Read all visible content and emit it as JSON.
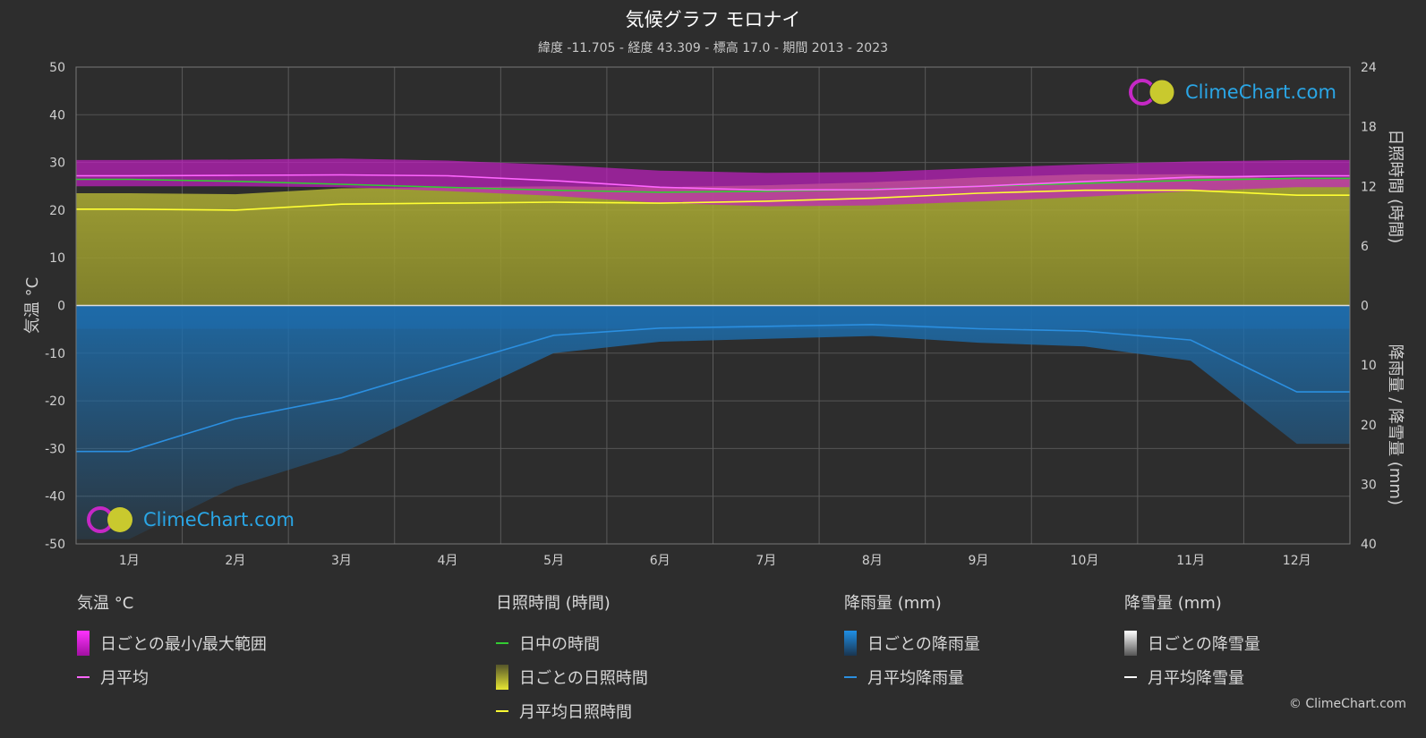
{
  "header": {
    "title": "気候グラフ モロナイ",
    "subtitle": "緯度 -11.705 - 経度 43.309 - 標高 17.0 - 期間 2013 - 2023"
  },
  "logo": {
    "text": "ClimeChart.com"
  },
  "copyright": "© ClimeChart.com",
  "colors": {
    "background": "#2d2d2d",
    "temp_range": "#d21fd2",
    "temp_avg": "#ff66ff",
    "daylight": "#33cc33",
    "sunshine": "#a6a633",
    "sunshine_avg": "#ffff33",
    "rain": "#1a6fb3",
    "rain_avg": "#2b8fe0",
    "snow": "#ffffff"
  },
  "legend": {
    "temperature": {
      "heading": "気温 °C",
      "items": [
        {
          "label": "日ごとの最小/最大範囲",
          "kind": "box",
          "color": "#d21fd2"
        },
        {
          "label": "月平均",
          "kind": "line",
          "color": "#ff66ff"
        }
      ]
    },
    "sunshine": {
      "heading": "日照時間 (時間)",
      "items": [
        {
          "label": "日中の時間",
          "kind": "line",
          "color": "#33cc33"
        },
        {
          "label": "日ごとの日照時間",
          "kind": "box",
          "color": "#a6a633"
        },
        {
          "label": "月平均日照時間",
          "kind": "line",
          "color": "#ffff33"
        }
      ]
    },
    "rain": {
      "heading": "降雨量 (mm)",
      "items": [
        {
          "label": "日ごとの降雨量",
          "kind": "box",
          "color": "#1a6fb3"
        },
        {
          "label": "月平均降雨量",
          "kind": "line",
          "color": "#2b8fe0"
        }
      ]
    },
    "snow": {
      "heading": "降雪量 (mm)",
      "items": [
        {
          "label": "日ごとの降雪量",
          "kind": "box",
          "color": "#dddddd"
        },
        {
          "label": "月平均降雪量",
          "kind": "line",
          "color": "#ffffff"
        }
      ]
    }
  },
  "chart_data": {
    "type": "line",
    "categories": [
      "1月",
      "2月",
      "3月",
      "4月",
      "5月",
      "6月",
      "7月",
      "8月",
      "9月",
      "10月",
      "11月",
      "12月"
    ],
    "ylabel_left": "気温 °C",
    "ylabel_right_top": "日照時間 (時間)",
    "ylabel_right_bottom": "降雨量 / 降雪量 (mm)",
    "ylim_left": [
      -50,
      50
    ],
    "yticks_left": [
      "50",
      "40",
      "30",
      "20",
      "10",
      "0",
      "-10",
      "-20",
      "-30",
      "-40",
      "-50"
    ],
    "yticks_right_top": [
      "24",
      "18",
      "12",
      "6",
      "0"
    ],
    "yticks_right_bottom": [
      "10",
      "20",
      "30",
      "40"
    ],
    "sunshine_range": [
      0,
      24
    ],
    "precip_range": [
      0,
      40
    ],
    "grid": true,
    "series": [
      {
        "name": "月平均",
        "unit": "°C",
        "values": [
          27.2,
          27.3,
          27.4,
          27.2,
          26.2,
          24.8,
          24.2,
          24.3,
          25.0,
          26.0,
          26.9,
          27.2
        ]
      },
      {
        "name": "日ごとの最小/最大範囲 (最大)",
        "unit": "°C",
        "values": [
          30.5,
          30.6,
          30.8,
          30.4,
          29.5,
          28.3,
          27.8,
          28.0,
          28.8,
          29.6,
          30.2,
          30.5
        ]
      },
      {
        "name": "日ごとの最小/最大範囲 (最小)",
        "unit": "°C",
        "values": [
          25.0,
          25.0,
          24.8,
          24.0,
          23.0,
          21.5,
          20.8,
          21.0,
          21.8,
          22.8,
          24.0,
          24.8
        ]
      },
      {
        "name": "日中の時間",
        "unit": "時間",
        "values": [
          12.7,
          12.5,
          12.2,
          11.9,
          11.6,
          11.4,
          11.5,
          11.7,
          12.0,
          12.3,
          12.6,
          12.8
        ]
      },
      {
        "name": "月平均日照時間",
        "unit": "時間",
        "values": [
          9.7,
          9.6,
          10.2,
          10.3,
          10.4,
          10.3,
          10.5,
          10.8,
          11.3,
          11.6,
          11.6,
          11.1
        ]
      },
      {
        "name": "月平均降雨量",
        "unit": "mm",
        "values": [
          24.5,
          19.0,
          15.5,
          10.2,
          5.0,
          3.8,
          3.5,
          3.2,
          3.9,
          4.3,
          5.8,
          14.5
        ]
      },
      {
        "name": "月平均降雪量",
        "unit": "mm",
        "values": [
          0,
          0,
          0,
          0,
          0,
          0,
          0,
          0,
          0,
          0,
          0,
          0
        ]
      }
    ]
  }
}
